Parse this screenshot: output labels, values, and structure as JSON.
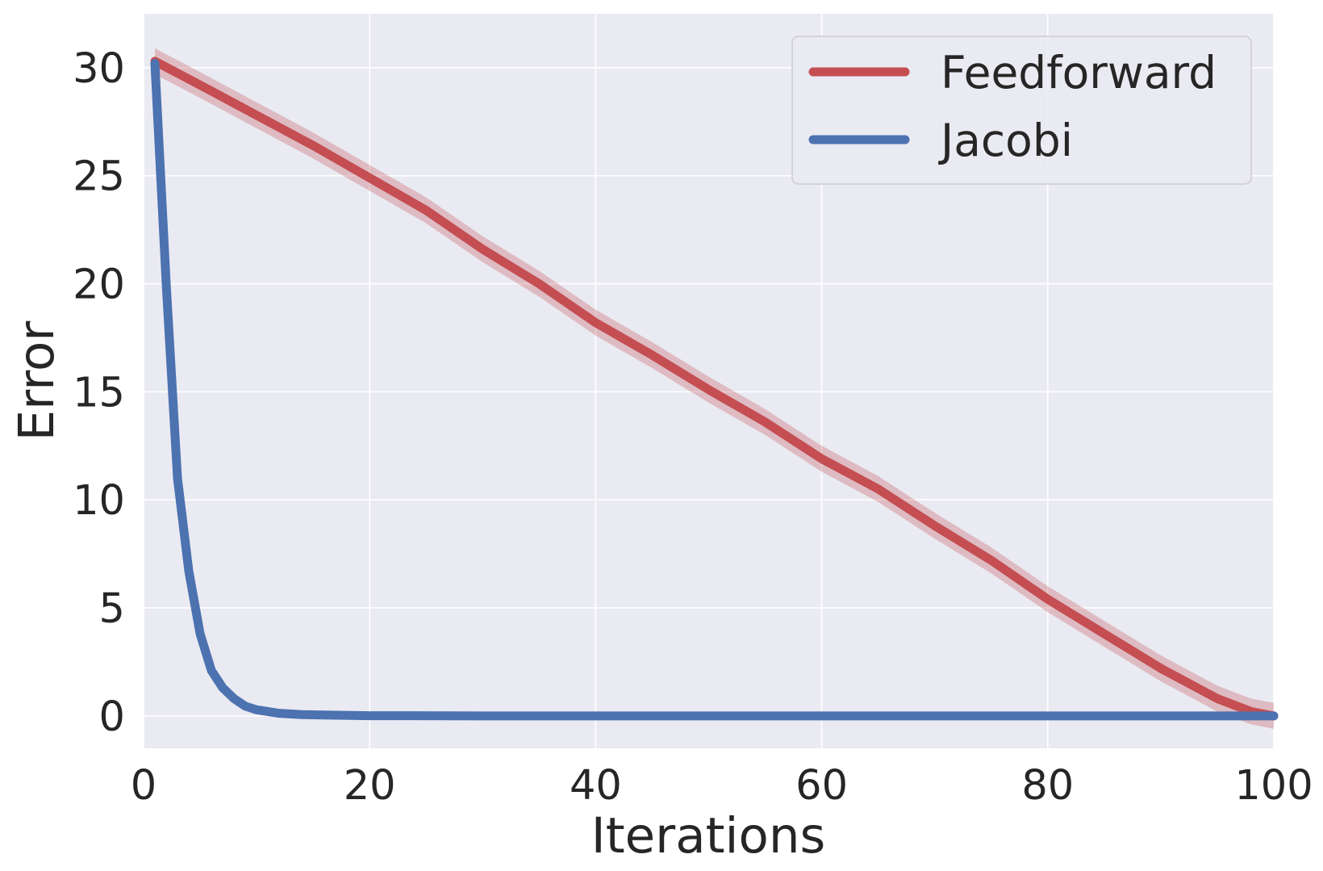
{
  "chart_data": {
    "type": "line",
    "xlabel": "Iterations",
    "ylabel": "Error",
    "xlim": [
      0,
      100
    ],
    "ylim": [
      -1.5,
      32.5
    ],
    "xticks": [
      0,
      20,
      40,
      60,
      80,
      100
    ],
    "yticks": [
      0,
      5,
      10,
      15,
      20,
      25,
      30
    ],
    "grid": true,
    "legend_position": "top-right",
    "colors": {
      "background": "#eaeaf2",
      "grid": "#ffffff",
      "feedforward": "#c44e52",
      "jacobi": "#4c72b0"
    },
    "series": [
      {
        "name": "Feedforward",
        "color": "#c44e52",
        "band": 0.6,
        "points": [
          [
            1,
            30.3
          ],
          [
            5,
            29.2
          ],
          [
            10,
            27.8
          ],
          [
            15,
            26.4
          ],
          [
            20,
            24.9
          ],
          [
            25,
            23.4
          ],
          [
            30,
            21.6
          ],
          [
            35,
            20.0
          ],
          [
            40,
            18.2
          ],
          [
            45,
            16.7
          ],
          [
            50,
            15.1
          ],
          [
            55,
            13.6
          ],
          [
            60,
            11.9
          ],
          [
            65,
            10.5
          ],
          [
            70,
            8.8
          ],
          [
            75,
            7.2
          ],
          [
            80,
            5.4
          ],
          [
            85,
            3.8
          ],
          [
            90,
            2.2
          ],
          [
            95,
            0.8
          ],
          [
            98,
            0.2
          ],
          [
            100,
            0.0
          ]
        ]
      },
      {
        "name": "Jacobi",
        "color": "#4c72b0",
        "band": 0,
        "points": [
          [
            1,
            30.2
          ],
          [
            2,
            20.0
          ],
          [
            3,
            11.0
          ],
          [
            4,
            6.7
          ],
          [
            5,
            3.8
          ],
          [
            6,
            2.1
          ],
          [
            7,
            1.3
          ],
          [
            8,
            0.8
          ],
          [
            9,
            0.45
          ],
          [
            10,
            0.28
          ],
          [
            12,
            0.12
          ],
          [
            14,
            0.06
          ],
          [
            17,
            0.03
          ],
          [
            20,
            0.01
          ],
          [
            30,
            0.0
          ],
          [
            100,
            0.0
          ]
        ]
      }
    ]
  }
}
